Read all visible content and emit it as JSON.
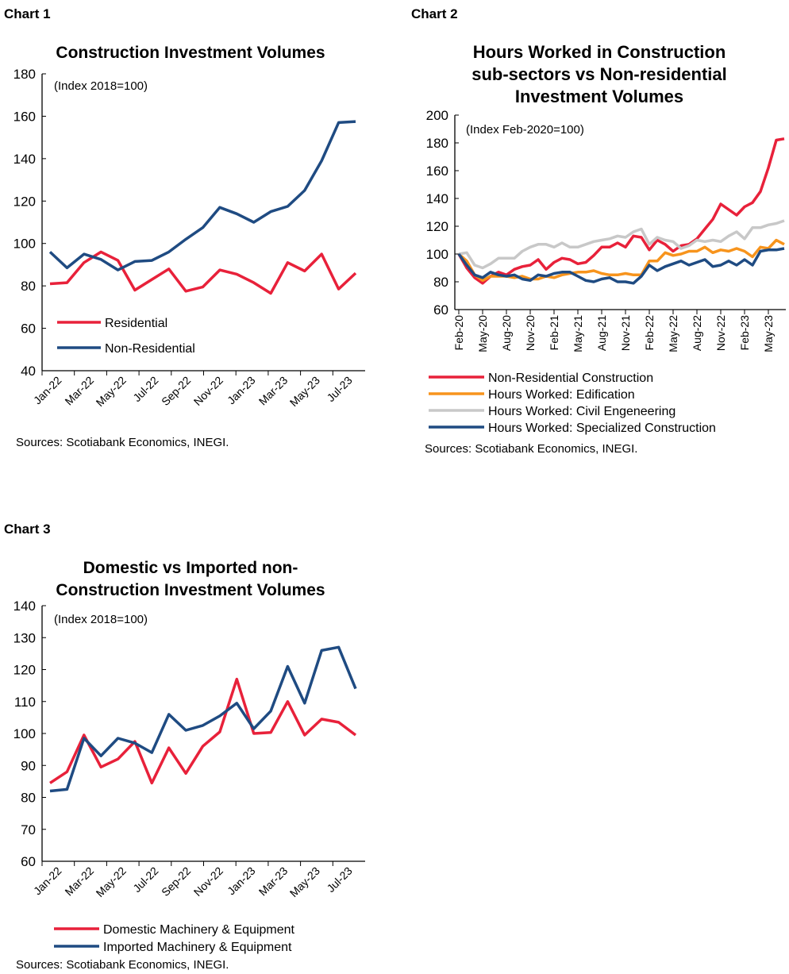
{
  "chart_data": [
    {
      "label": "Chart 1",
      "type": "line",
      "title": [
        "Construction Investment Volumes"
      ],
      "annotation": "(Index 2018=100)",
      "x": [
        "Jan-22",
        "Feb-22",
        "Mar-22",
        "Apr-22",
        "May-22",
        "Jun-22",
        "Jul-22",
        "Aug-22",
        "Sep-22",
        "Oct-22",
        "Nov-22",
        "Dec-22",
        "Jan-23",
        "Feb-23",
        "Mar-23",
        "Apr-23",
        "May-23",
        "Jun-23",
        "Jul-23"
      ],
      "xticklabels": [
        "Jan-22",
        "Mar-22",
        "May-22",
        "Jul-22",
        "Sep-22",
        "Nov-22",
        "Jan-23",
        "Mar-23",
        "May-23",
        "Jul-23"
      ],
      "ylim": [
        40,
        180
      ],
      "yticks": [
        40,
        60,
        80,
        100,
        120,
        140,
        160,
        180
      ],
      "series": [
        {
          "name": "Residential",
          "color": "#e8213a",
          "values": [
            81,
            81.5,
            91,
            96,
            92,
            78,
            83,
            88,
            77.5,
            79.5,
            87.5,
            85.5,
            81.5,
            76.5,
            91,
            87,
            95,
            78.5,
            86
          ]
        },
        {
          "name": "Non-Residential",
          "color": "#1f4b82",
          "values": [
            96,
            88.5,
            95,
            92.5,
            87.5,
            91.5,
            92,
            96,
            102,
            107.5,
            117,
            114,
            110,
            115,
            117.5,
            125,
            139,
            157,
            157.5
          ]
        }
      ],
      "legend": "bottom-left inside",
      "source": "Sources: Scotiabank Economics, INEGI."
    },
    {
      "label": "Chart 2",
      "type": "line",
      "title": [
        "Hours Worked in Construction",
        "sub-sectors vs Non-residential",
        "Investment Volumes"
      ],
      "annotation": "(Index Feb-2020=100)",
      "x": [
        "Feb-20",
        "Mar-20",
        "Apr-20",
        "May-20",
        "Jun-20",
        "Jul-20",
        "Aug-20",
        "Sep-20",
        "Oct-20",
        "Nov-20",
        "Dec-20",
        "Jan-21",
        "Feb-21",
        "Mar-21",
        "Apr-21",
        "May-21",
        "Jun-21",
        "Jul-21",
        "Aug-21",
        "Sep-21",
        "Oct-21",
        "Nov-21",
        "Dec-21",
        "Jan-22",
        "Feb-22",
        "Mar-22",
        "Apr-22",
        "May-22",
        "Jun-22",
        "Jul-22",
        "Aug-22",
        "Sep-22",
        "Oct-22",
        "Nov-22",
        "Dec-22",
        "Jan-23",
        "Feb-23",
        "Mar-23",
        "Apr-23",
        "May-23",
        "Jun-23",
        "Jul-23"
      ],
      "xticklabels": [
        "Feb-20",
        "May-20",
        "Aug-20",
        "Nov-20",
        "Feb-21",
        "May-21",
        "Aug-21",
        "Nov-21",
        "Feb-22",
        "May-22",
        "Aug-22",
        "Nov-22",
        "Feb-23",
        "May-23"
      ],
      "ylim": [
        60,
        200
      ],
      "yticks": [
        60,
        80,
        100,
        120,
        140,
        160,
        180,
        200
      ],
      "series": [
        {
          "name": "Non-Residential Construction",
          "color": "#e8213a",
          "values": [
            100,
            90,
            83,
            79,
            84,
            87,
            85,
            89,
            91,
            92,
            96,
            89,
            94,
            97,
            96,
            93,
            94,
            99,
            105,
            105,
            108,
            105,
            113,
            112,
            103,
            110,
            107,
            102,
            106,
            107,
            111,
            118,
            125,
            136,
            132,
            128,
            134,
            137,
            145,
            162,
            182,
            183
          ]
        },
        {
          "name": "Hours Worked: Edification",
          "color": "#f7941d",
          "values": [
            100,
            95,
            85,
            81,
            84,
            84,
            84,
            83,
            84,
            82,
            82,
            84,
            83,
            85,
            86,
            87,
            87,
            88,
            86,
            85,
            85,
            86,
            85,
            85,
            95,
            95,
            101,
            99,
            100,
            102,
            102,
            105,
            101,
            103,
            102,
            104,
            102,
            98,
            105,
            104,
            110,
            107
          ]
        },
        {
          "name": "Hours Worked: Civil Engeneering",
          "color": "#c8c8c8",
          "values": [
            100,
            101,
            92,
            90,
            93,
            97,
            97,
            97,
            102,
            105,
            107,
            107,
            105,
            108,
            105,
            105,
            107,
            109,
            110,
            111,
            113,
            112,
            116,
            118,
            107,
            112,
            110,
            109,
            104,
            106,
            110,
            109,
            110,
            109,
            113,
            116,
            111,
            119,
            119,
            121,
            122,
            124
          ]
        },
        {
          "name": "Hours Worked: Specialized Construction",
          "color": "#1f4b82",
          "values": [
            100,
            92,
            85,
            83,
            87,
            85,
            84,
            85,
            82,
            81,
            85,
            84,
            86,
            87,
            87,
            84,
            81,
            80,
            82,
            83,
            80,
            80,
            79,
            84,
            92,
            88,
            91,
            93,
            95,
            92,
            94,
            96,
            91,
            92,
            95,
            92,
            96,
            92,
            102,
            103,
            103,
            104
          ]
        }
      ],
      "legend": "bottom",
      "source": "Sources: Scotiabank Economics, INEGI."
    },
    {
      "label": "Chart 3",
      "type": "line",
      "title": [
        "Domestic vs Imported non-",
        "Construction Investment Volumes"
      ],
      "annotation": "(Index 2018=100)",
      "x": [
        "Jan-22",
        "Feb-22",
        "Mar-22",
        "Apr-22",
        "May-22",
        "Jun-22",
        "Jul-22",
        "Aug-22",
        "Sep-22",
        "Oct-22",
        "Nov-22",
        "Dec-22",
        "Jan-23",
        "Feb-23",
        "Mar-23",
        "Apr-23",
        "May-23",
        "Jun-23",
        "Jul-23"
      ],
      "xticklabels": [
        "Jan-22",
        "Mar-22",
        "May-22",
        "Jul-22",
        "Sep-22",
        "Nov-22",
        "Jan-23",
        "Mar-23",
        "May-23",
        "Jul-23"
      ],
      "ylim": [
        60,
        140
      ],
      "yticks": [
        60,
        70,
        80,
        90,
        100,
        110,
        120,
        130,
        140
      ],
      "series": [
        {
          "name": "Domestic Machinery & Equipment",
          "color": "#e8213a",
          "values": [
            84.5,
            88,
            99.5,
            89.5,
            92,
            97.5,
            84.5,
            95.5,
            87.5,
            96,
            100.5,
            117,
            100,
            100.3,
            110,
            99.5,
            104.5,
            103.5,
            99.5
          ]
        },
        {
          "name": "Imported Machinery & Equipment",
          "color": "#1f4b82",
          "values": [
            82,
            82.5,
            98.5,
            93,
            98.5,
            97,
            94,
            106,
            101,
            102.5,
            105.5,
            109.5,
            101.5,
            107,
            121,
            109.5,
            126,
            127,
            114
          ]
        }
      ],
      "legend": "bottom",
      "source": "Sources: Scotiabank Economics, INEGI."
    }
  ]
}
